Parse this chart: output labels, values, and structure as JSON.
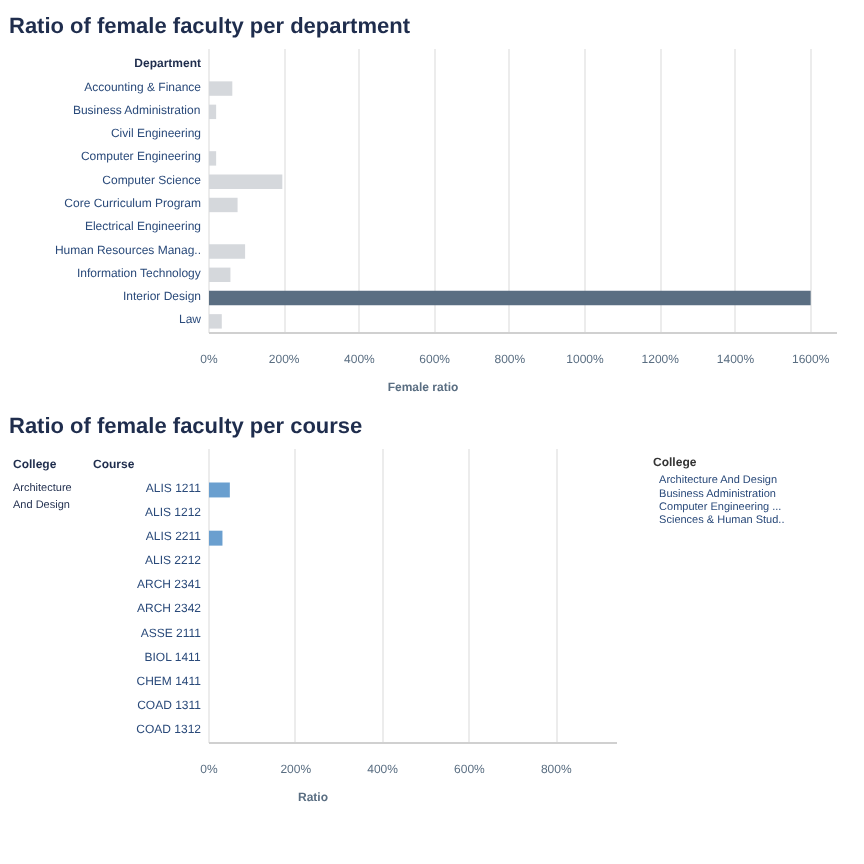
{
  "chart_data": [
    {
      "type": "bar",
      "orientation": "horizontal",
      "title": "Ratio of female faculty per department",
      "ylabel": "Department",
      "xlabel": "Female ratio",
      "categories": [
        "Accounting & Finance",
        "Business Administration",
        "Civil Engineering",
        "Computer Engineering",
        "Computer Science",
        "Core Curriculum Program",
        "Electrical Engineering",
        "Human Resources Manag..",
        "Information Technology",
        "Interior Design",
        "Law"
      ],
      "values": [
        62,
        19,
        0,
        19,
        195,
        76,
        0,
        96,
        57,
        1600,
        34
      ],
      "colors": [
        "#d5d8dc",
        "#d5d8dc",
        "#d5d8dc",
        "#d5d8dc",
        "#d5d8dc",
        "#d5d8dc",
        "#d5d8dc",
        "#d5d8dc",
        "#d5d8dc",
        "#5a6e82",
        "#d5d8dc"
      ],
      "xlim": [
        0,
        1670
      ],
      "xticks": [
        {
          "value": 0,
          "label": "0%"
        },
        {
          "value": 200,
          "label": "200%"
        },
        {
          "value": 400,
          "label": "400%"
        },
        {
          "value": 600,
          "label": "600%"
        },
        {
          "value": 800,
          "label": "800%"
        },
        {
          "value": 1000,
          "label": "1000%"
        },
        {
          "value": 1200,
          "label": "1200%"
        },
        {
          "value": 1400,
          "label": "1400%"
        },
        {
          "value": 1600,
          "label": "1600%"
        }
      ],
      "grid": "x"
    },
    {
      "type": "bar",
      "orientation": "horizontal",
      "title": "Ratio of female faculty per course",
      "ylabel": "Course",
      "xlabel": "Ratio",
      "categories": [
        "ALIS 1211",
        "ALIS 1212",
        "ALIS 2211",
        "ALIS 2212",
        "ARCH 2341",
        "ARCH 2342",
        "ASSE 2111",
        "BIOL 1411",
        "CHEM 1411",
        "COAD 1311",
        "COAD 1312"
      ],
      "values": [
        48,
        0,
        31,
        0,
        0,
        0,
        0,
        0,
        0,
        0,
        0
      ],
      "color": "#6a9fcf",
      "xlim": [
        0,
        940
      ],
      "xticks": [
        {
          "value": 0,
          "label": "0%"
        },
        {
          "value": 200,
          "label": "200%"
        },
        {
          "value": 400,
          "label": "400%"
        },
        {
          "value": 600,
          "label": "600%"
        },
        {
          "value": 800,
          "label": "800%"
        }
      ],
      "grid": "x",
      "annotations": [
        "College",
        "Architecture And Design"
      ]
    },
    {
      "type": "other",
      "title": "College",
      "annotations": [
        "Architecture And Design",
        "Business Administration",
        "Computer Engineering ...",
        "Sciences & Human Stud.."
      ]
    }
  ]
}
